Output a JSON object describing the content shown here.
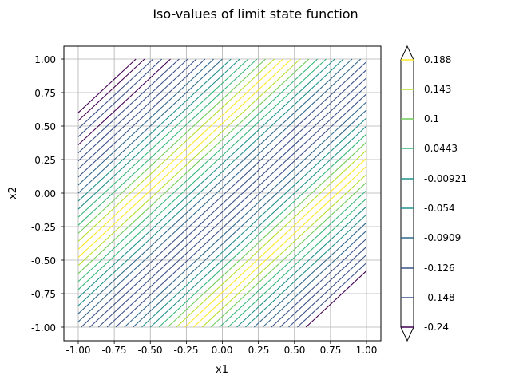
{
  "chart_data": {
    "type": "contour",
    "title": "Iso-values of limit state function",
    "xlabel": "x1",
    "ylabel": "x2",
    "xlim": [
      -1.0,
      1.0
    ],
    "ylim": [
      -1.0,
      1.0
    ],
    "grid": true,
    "x_ticks": [
      "-1.00",
      "-0.75",
      "-0.50",
      "-0.25",
      "0.00",
      "0.25",
      "0.50",
      "0.75",
      "1.00"
    ],
    "y_ticks": [
      "1.00",
      "0.75",
      "0.50",
      "0.25",
      "0.00",
      "-0.25",
      "-0.50",
      "-0.75",
      "-1.00"
    ],
    "colorbar": {
      "tick_labels": [
        "0.188",
        "0.143",
        "0.1",
        "0.0443",
        "-0.00921",
        "-0.054",
        "-0.0909",
        "-0.126",
        "-0.148",
        "-0.24"
      ],
      "extend": "both",
      "colormap": "viridis"
    },
    "contour_lines": {
      "direction_slope": 1,
      "offsets": [
        -1.58,
        -1.52,
        -1.46,
        -1.4,
        -1.34,
        -1.28,
        -1.22,
        -1.16,
        -1.1,
        -1.04,
        -0.98,
        -0.92,
        -0.86,
        -0.8,
        -0.74,
        -0.68,
        -0.62,
        -0.56,
        -0.5,
        -0.44,
        -0.38,
        -0.32,
        -0.26,
        -0.2,
        -0.14,
        -0.08,
        -0.02,
        0.04,
        0.1,
        0.16,
        0.22,
        0.28,
        0.34,
        0.4,
        0.46,
        0.52,
        0.58,
        0.64,
        0.7,
        0.76,
        0.82,
        0.88,
        0.94,
        1.0,
        1.06,
        1.12,
        1.18,
        1.24,
        1.3,
        1.36,
        1.42,
        1.48,
        1.54,
        1.6
      ],
      "colors": [
        "#440154",
        "#3b528b",
        "#3b528b",
        "#3b528b",
        "#3b528b",
        "#31688e",
        "#31688e",
        "#21918c",
        "#21918c",
        "#35b779",
        "#35b779",
        "#6ece58",
        "#b5de2b",
        "#fde725",
        "#fde725",
        "#b5de2b",
        "#6ece58",
        "#35b779",
        "#21918c",
        "#21918c",
        "#31688e",
        "#31688e",
        "#3b528b",
        "#3b528b",
        "#3b528b",
        "#3b528b",
        "#3b528b",
        "#31688e",
        "#31688e",
        "#21918c",
        "#21918c",
        "#35b779",
        "#35b779",
        "#6ece58",
        "#b5de2b",
        "#fde725",
        "#fde725",
        "#b5de2b",
        "#6ece58",
        "#35b779",
        "#35b779",
        "#21918c",
        "#21918c",
        "#31688e",
        "#31688e",
        "#3b528b",
        "#3b528b",
        "#3b528b",
        "#3b528b",
        "#440154",
        "#3b528b",
        "#3b528b",
        "#440154",
        "#440154"
      ]
    }
  }
}
